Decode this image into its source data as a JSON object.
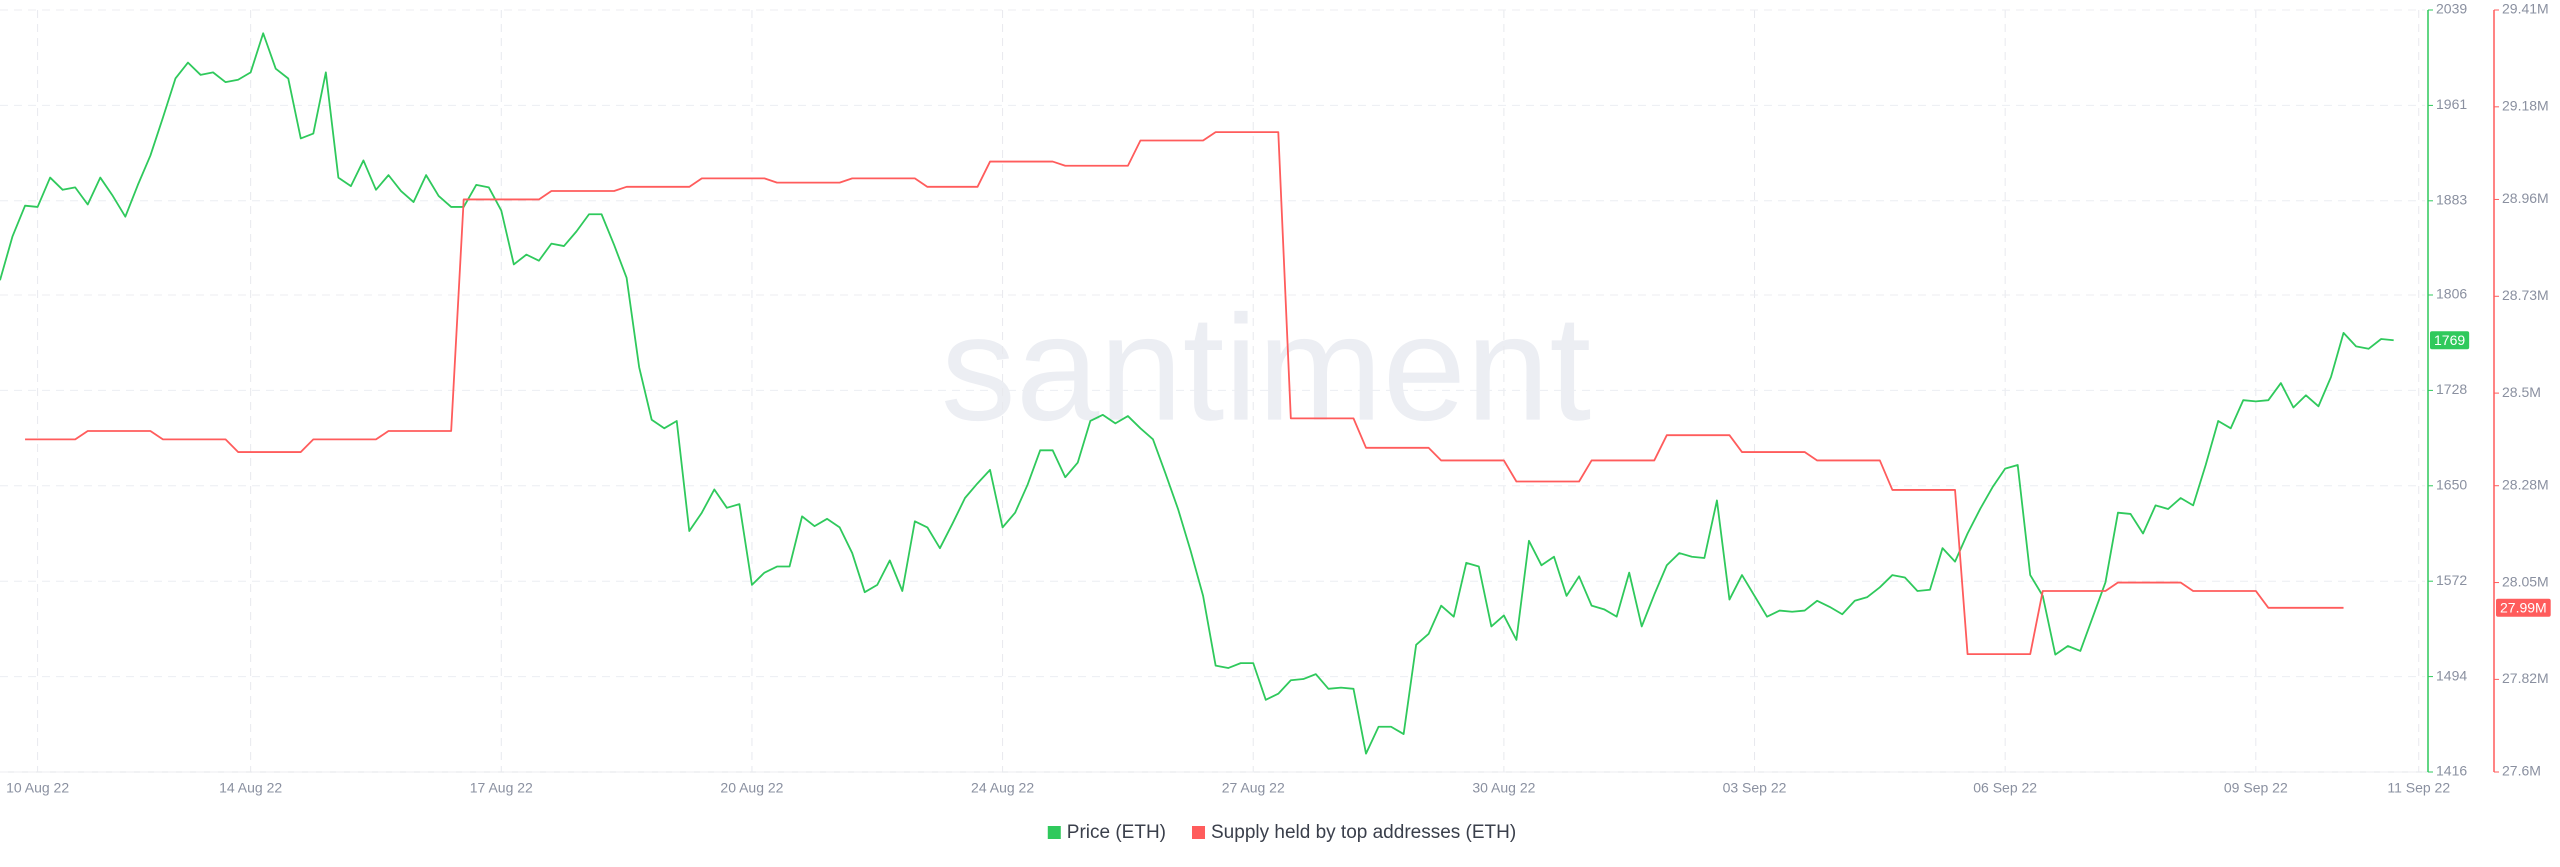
{
  "chart_data": {
    "type": "line",
    "watermark": "santiment",
    "xlim": [
      0,
      193.5
    ],
    "xticks": [
      {
        "value": 3,
        "label": "10 Aug 22"
      },
      {
        "value": 20,
        "label": "14 Aug 22"
      },
      {
        "value": 40,
        "label": "17 Aug 22"
      },
      {
        "value": 60,
        "label": "20 Aug 22"
      },
      {
        "value": 80,
        "label": "24 Aug 22"
      },
      {
        "value": 100,
        "label": "27 Aug 22"
      },
      {
        "value": 120,
        "label": "30 Aug 22"
      },
      {
        "value": 140,
        "label": "03 Sep 22"
      },
      {
        "value": 160,
        "label": "06 Sep 22"
      },
      {
        "value": 180,
        "label": "09 Sep 22"
      },
      {
        "value": 193,
        "label": "11 Sep 22"
      }
    ],
    "ylim": [
      1416,
      2039
    ],
    "yticks": [
      1416,
      1494,
      1572,
      1650,
      1728,
      1806,
      1883,
      1961,
      2039
    ],
    "y2lim": [
      27600000,
      29410000
    ],
    "y2ticks": [
      {
        "value": 27600000,
        "label": "27.6M"
      },
      {
        "value": 27820000,
        "label": "27.82M"
      },
      {
        "value": 28050000,
        "label": "28.05M"
      },
      {
        "value": 28280000,
        "label": "28.28M"
      },
      {
        "value": 28500000,
        "label": "28.5M"
      },
      {
        "value": 28730000,
        "label": "28.73M"
      },
      {
        "value": 28960000,
        "label": "28.96M"
      },
      {
        "value": 29180000,
        "label": "29.18M"
      },
      {
        "value": 29410000,
        "label": "29.41M"
      }
    ],
    "grid": true,
    "legend": "bottom",
    "series": [
      {
        "name": "Price (ETH)",
        "color": "#2fc95c",
        "axis": "y",
        "values": [
          1818,
          1854,
          1879,
          1878,
          1902,
          1892,
          1894,
          1880,
          1902,
          1887,
          1870,
          1896,
          1920,
          1951,
          1983,
          1996,
          1986,
          1988,
          1980,
          1982,
          1988,
          2020,
          1991,
          1983,
          1934,
          1938,
          1988,
          1902,
          1895,
          1916,
          1892,
          1904,
          1891,
          1882,
          1904,
          1887,
          1878,
          1878,
          1896,
          1894,
          1875,
          1831,
          1839,
          1834,
          1848,
          1846,
          1858,
          1872,
          1872,
          1847,
          1820,
          1747,
          1704,
          1697,
          1703,
          1613,
          1628,
          1647,
          1632,
          1635,
          1569,
          1579,
          1584,
          1584,
          1625,
          1617,
          1623,
          1616,
          1595,
          1563,
          1569,
          1589,
          1564,
          1621,
          1616,
          1599,
          1619,
          1640,
          1652,
          1663,
          1616,
          1628,
          1651,
          1679,
          1679,
          1657,
          1669,
          1703,
          1708,
          1701,
          1707,
          1697,
          1688,
          1660,
          1631,
          1597,
          1560,
          1503,
          1501,
          1505,
          1505,
          1475,
          1480,
          1491,
          1492,
          1496,
          1484,
          1485,
          1484,
          1431,
          1453,
          1453,
          1447,
          1520,
          1529,
          1552,
          1543,
          1587,
          1584,
          1535,
          1544,
          1524,
          1605,
          1585,
          1592,
          1560,
          1576,
          1552,
          1549,
          1543,
          1579,
          1535,
          1561,
          1585,
          1595,
          1592,
          1591,
          1638,
          1557,
          1577,
          1560,
          1543,
          1548,
          1547,
          1548,
          1556,
          1551,
          1545,
          1556,
          1559,
          1567,
          1577,
          1575,
          1564,
          1565,
          1599,
          1588,
          1611,
          1631,
          1649,
          1664,
          1667,
          1577,
          1560,
          1512,
          1519,
          1515,
          1543,
          1571,
          1628,
          1627,
          1611,
          1634,
          1631,
          1640,
          1634,
          1667,
          1703,
          1697,
          1720,
          1719,
          1720,
          1734,
          1714,
          1724,
          1715,
          1739,
          1775,
          1764,
          1762,
          1770,
          1769
        ]
      },
      {
        "name": "Supply held by top addresses (ETH)",
        "color": "#ff5c5c",
        "axis": "y2",
        "values": [
          null,
          null,
          28390000,
          28390000,
          28390000,
          28390000,
          28390000,
          28410000,
          28410000,
          28410000,
          28410000,
          28410000,
          28410000,
          28390000,
          28390000,
          28390000,
          28390000,
          28390000,
          28390000,
          28360000,
          28360000,
          28360000,
          28360000,
          28360000,
          28360000,
          28390000,
          28390000,
          28390000,
          28390000,
          28390000,
          28390000,
          28410000,
          28410000,
          28410000,
          28410000,
          28410000,
          28410000,
          28960000,
          28960000,
          28960000,
          28960000,
          28960000,
          28960000,
          28960000,
          28980000,
          28980000,
          28980000,
          28980000,
          28980000,
          28980000,
          28990000,
          28990000,
          28990000,
          28990000,
          28990000,
          28990000,
          29010000,
          29010000,
          29010000,
          29010000,
          29010000,
          29010000,
          29000000,
          29000000,
          29000000,
          29000000,
          29000000,
          29000000,
          29010000,
          29010000,
          29010000,
          29010000,
          29010000,
          29010000,
          28990000,
          28990000,
          28990000,
          28990000,
          28990000,
          29050000,
          29050000,
          29050000,
          29050000,
          29050000,
          29050000,
          29040000,
          29040000,
          29040000,
          29040000,
          29040000,
          29040000,
          29100000,
          29100000,
          29100000,
          29100000,
          29100000,
          29100000,
          29120000,
          29120000,
          29120000,
          29120000,
          29120000,
          29120000,
          28440000,
          28440000,
          28440000,
          28440000,
          28440000,
          28440000,
          28370000,
          28370000,
          28370000,
          28370000,
          28370000,
          28370000,
          28340000,
          28340000,
          28340000,
          28340000,
          28340000,
          28340000,
          28290000,
          28290000,
          28290000,
          28290000,
          28290000,
          28290000,
          28340000,
          28340000,
          28340000,
          28340000,
          28340000,
          28340000,
          28400000,
          28400000,
          28400000,
          28400000,
          28400000,
          28400000,
          28360000,
          28360000,
          28360000,
          28360000,
          28360000,
          28360000,
          28340000,
          28340000,
          28340000,
          28340000,
          28340000,
          28340000,
          28270000,
          28270000,
          28270000,
          28270000,
          28270000,
          28270000,
          27880000,
          27880000,
          27880000,
          27880000,
          27880000,
          27880000,
          28030000,
          28030000,
          28030000,
          28030000,
          28030000,
          28030000,
          28050000,
          28050000,
          28050000,
          28050000,
          28050000,
          28050000,
          28030000,
          28030000,
          28030000,
          28030000,
          28030000,
          28030000,
          27990000,
          27990000,
          27990000,
          27990000,
          27990000,
          27990000,
          27990000,
          null,
          null,
          null,
          null
        ],
        "value_labels": [
          null,
          null,
          null,
          null,
          null,
          null,
          null,
          null,
          null,
          null,
          null,
          null,
          null,
          null,
          null,
          null,
          null,
          null,
          null,
          null,
          null,
          null,
          null,
          null,
          null,
          null,
          null,
          null,
          null,
          null,
          null,
          null,
          null,
          null,
          null,
          null,
          null,
          null,
          null,
          null,
          null,
          null,
          null,
          null,
          null,
          null,
          null,
          null,
          null,
          null,
          null,
          null,
          null,
          null,
          null,
          null,
          null,
          null,
          null,
          null,
          null,
          null,
          null,
          null,
          null,
          null,
          null,
          null,
          null,
          null,
          null,
          null,
          null,
          null,
          null,
          null,
          null,
          null,
          null,
          null,
          null,
          null,
          null,
          null,
          null,
          null,
          null,
          null,
          null,
          null,
          null,
          null,
          null,
          null,
          null,
          null,
          null,
          null,
          null,
          null,
          null,
          null,
          null,
          null,
          null,
          null,
          null,
          null,
          null,
          null,
          null,
          null,
          null,
          null,
          null,
          null,
          null,
          null,
          null,
          null,
          null,
          null,
          null,
          null,
          null,
          null,
          null,
          null,
          null,
          null,
          null,
          null,
          null,
          null,
          null,
          null,
          null,
          null,
          null,
          null,
          null,
          null,
          null,
          null,
          null,
          null,
          null,
          null,
          null,
          null,
          null,
          null,
          null,
          null,
          null,
          null,
          null,
          null,
          null,
          null,
          null,
          null,
          null,
          null,
          null,
          null,
          null,
          null,
          null,
          null,
          null,
          null,
          null,
          null,
          null,
          null,
          null,
          null,
          null,
          null,
          null,
          null,
          null,
          null,
          null,
          null,
          null,
          "27.99M",
          null,
          null,
          null,
          null
        ]
      }
    ]
  }
}
